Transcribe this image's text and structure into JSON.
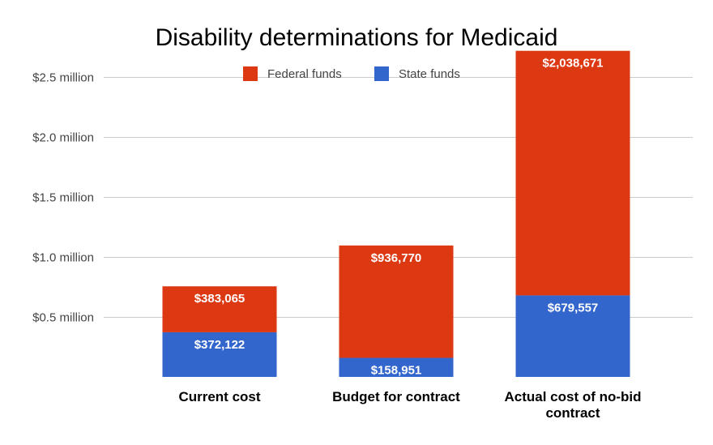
{
  "chart_data": {
    "type": "bar",
    "stacked": true,
    "title": "Disability determinations for Medicaid",
    "xlabel": "",
    "ylabel": "",
    "categories": [
      [
        "Current cost"
      ],
      [
        "Budget for contract"
      ],
      [
        "Actual cost of no-bid",
        "contract"
      ]
    ],
    "series": [
      {
        "name": "State funds",
        "color": "#3366cc",
        "values": [
          372122,
          158951,
          679557
        ],
        "labels": [
          "$372,122",
          "$158,951",
          "$679,557"
        ]
      },
      {
        "name": "Federal funds",
        "color": "#dc3912",
        "values": [
          383065,
          936770,
          2038671
        ],
        "labels": [
          "$383,065",
          "$936,770",
          "$2,038,671"
        ]
      }
    ],
    "legend_order": [
      "Federal funds",
      "State funds"
    ],
    "legend_position": "top",
    "ylim": [
      0,
      2750000
    ],
    "yticks": [
      {
        "value": 500000,
        "label": "$0.5 million"
      },
      {
        "value": 1000000,
        "label": "$1.0 million"
      },
      {
        "value": 1500000,
        "label": "$1.5 million"
      },
      {
        "value": 2000000,
        "label": "$2.0 million"
      },
      {
        "value": 2500000,
        "label": "$2.5 million"
      }
    ],
    "grid": true,
    "gridline_color": "#cccccc"
  }
}
